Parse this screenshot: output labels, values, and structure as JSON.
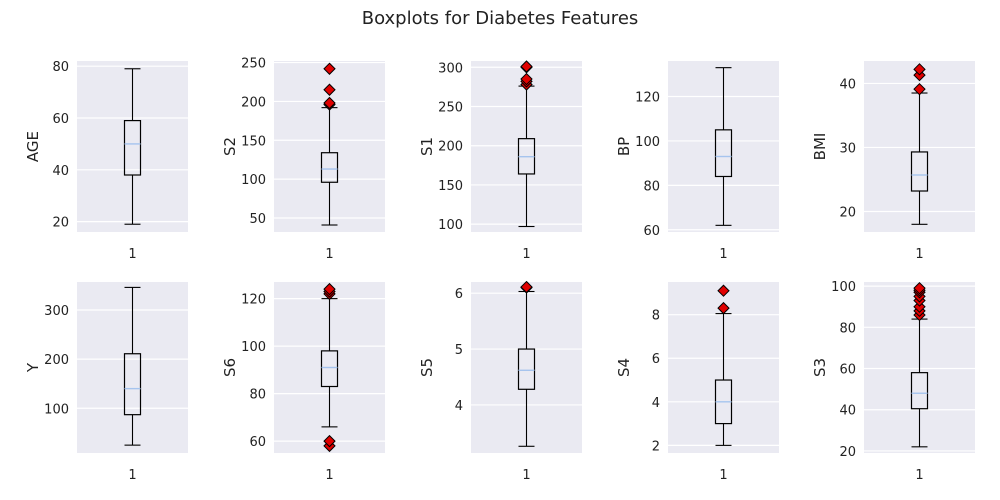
{
  "title": "Boxplots for Diabetes Features",
  "chart_data": [
    {
      "type": "box",
      "ylabel": "AGE",
      "categories": [
        "1"
      ],
      "ylim": [
        16,
        82
      ],
      "yticks": [
        20,
        40,
        60,
        80
      ],
      "whisker_low": 19,
      "q1": 38,
      "median": 50,
      "q3": 59,
      "whisker_high": 79,
      "outliers": []
    },
    {
      "type": "box",
      "ylabel": "S2",
      "categories": [
        "1"
      ],
      "ylim": [
        32,
        252
      ],
      "yticks": [
        50,
        100,
        150,
        200,
        250
      ],
      "whisker_low": 41,
      "q1": 96,
      "median": 113,
      "q3": 134,
      "whisker_high": 192,
      "outliers": [
        196,
        198,
        215,
        242
      ]
    },
    {
      "type": "box",
      "ylabel": "S1",
      "categories": [
        "1"
      ],
      "ylim": [
        90,
        308
      ],
      "yticks": [
        100,
        150,
        200,
        250,
        300
      ],
      "whisker_low": 97,
      "q1": 164,
      "median": 186,
      "q3": 209,
      "whisker_high": 276,
      "outliers": [
        278,
        282,
        285,
        300,
        301
      ]
    },
    {
      "type": "box",
      "ylabel": "BP",
      "categories": [
        "1"
      ],
      "ylim": [
        59,
        136
      ],
      "yticks": [
        60,
        80,
        100,
        120
      ],
      "whisker_low": 62,
      "q1": 84,
      "median": 93,
      "q3": 105,
      "whisker_high": 133,
      "outliers": []
    },
    {
      "type": "box",
      "ylabel": "BMI",
      "categories": [
        "1"
      ],
      "ylim": [
        16.8,
        43.5
      ],
      "yticks": [
        20,
        30,
        40
      ],
      "whisker_low": 18,
      "q1": 23.2,
      "median": 25.7,
      "q3": 29.3,
      "whisker_high": 38.5,
      "outliers": [
        39.1,
        41.3,
        42.2
      ]
    },
    {
      "type": "box",
      "ylabel": "Y",
      "categories": [
        "1"
      ],
      "ylim": [
        9,
        357
      ],
      "yticks": [
        100,
        200,
        300
      ],
      "whisker_low": 25,
      "q1": 87,
      "median": 140,
      "q3": 211,
      "whisker_high": 346,
      "outliers": []
    },
    {
      "type": "box",
      "ylabel": "S6",
      "categories": [
        "1"
      ],
      "ylim": [
        55,
        127
      ],
      "yticks": [
        60,
        80,
        100,
        120
      ],
      "whisker_low": 66,
      "q1": 83,
      "median": 91,
      "q3": 98,
      "whisker_high": 120,
      "outliers": [
        58,
        60,
        122,
        123,
        124
      ]
    },
    {
      "type": "box",
      "ylabel": "S5",
      "categories": [
        "1"
      ],
      "ylim": [
        3.14,
        6.2
      ],
      "yticks": [
        4,
        5,
        6
      ],
      "whisker_low": 3.26,
      "q1": 4.28,
      "median": 4.62,
      "q3": 5.0,
      "whisker_high": 6.03,
      "outliers": [
        6.1,
        6.11
      ]
    },
    {
      "type": "box",
      "ylabel": "S4",
      "categories": [
        "1"
      ],
      "ylim": [
        1.65,
        9.5
      ],
      "yticks": [
        2,
        4,
        6,
        8
      ],
      "whisker_low": 2,
      "q1": 3,
      "median": 4,
      "q3": 5,
      "whisker_high": 8.05,
      "outliers": [
        8.3,
        9.1
      ]
    },
    {
      "type": "box",
      "ylabel": "S3",
      "categories": [
        "1"
      ],
      "ylim": [
        19,
        102
      ],
      "yticks": [
        20,
        40,
        60,
        80,
        100
      ],
      "whisker_low": 22,
      "q1": 40.5,
      "median": 48,
      "q3": 58,
      "whisker_high": 84,
      "outliers": [
        86,
        88,
        90,
        93,
        95,
        97,
        98,
        99
      ]
    }
  ]
}
